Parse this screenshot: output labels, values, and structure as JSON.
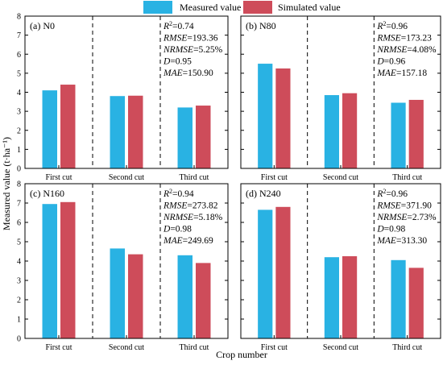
{
  "figure": {
    "ylabel": "Measured value (t·ha⁻¹)",
    "xlabel": "Crop number",
    "legend": [
      {
        "label": "Measured value",
        "color": "#29B2E3"
      },
      {
        "label": "Simulated value",
        "color": "#CE4C5A"
      }
    ]
  },
  "chart_data": [
    {
      "type": "bar",
      "panel_label": "(a) N0",
      "categories": [
        "First cut",
        "Second cut",
        "Third cut"
      ],
      "series": [
        {
          "name": "Measured value",
          "values": [
            4.1,
            3.8,
            3.2
          ]
        },
        {
          "name": "Simulated value",
          "values": [
            4.4,
            3.82,
            3.3
          ]
        }
      ],
      "ylim": [
        0,
        8
      ],
      "yticks": [
        0,
        1,
        2,
        3,
        4,
        5,
        6,
        7,
        8
      ],
      "stats": {
        "r2": "0.74",
        "rmse": "193.36",
        "nrmse": "5.25%",
        "d": "0.95",
        "mae": "150.90"
      }
    },
    {
      "type": "bar",
      "panel_label": "(b) N80",
      "categories": [
        "First cut",
        "Second cut",
        "Third cut"
      ],
      "series": [
        {
          "name": "Measured value",
          "values": [
            5.5,
            3.85,
            3.45
          ]
        },
        {
          "name": "Simulated value",
          "values": [
            5.25,
            3.95,
            3.6
          ]
        }
      ],
      "ylim": [
        0,
        8
      ],
      "yticks": [
        0,
        1,
        2,
        3,
        4,
        5,
        6,
        7,
        8
      ],
      "stats": {
        "r2": "0.96",
        "rmse": "173.23",
        "nrmse": "4.08%",
        "d": "0.96",
        "mae": "157.18"
      }
    },
    {
      "type": "bar",
      "panel_label": "(c) N160",
      "categories": [
        "First cut",
        "Second cut",
        "Third cut"
      ],
      "series": [
        {
          "name": "Measured value",
          "values": [
            6.95,
            4.65,
            4.3
          ]
        },
        {
          "name": "Simulated value",
          "values": [
            7.05,
            4.35,
            3.9
          ]
        }
      ],
      "ylim": [
        0,
        8
      ],
      "yticks": [
        0,
        1,
        2,
        3,
        4,
        5,
        6,
        7,
        8
      ],
      "stats": {
        "r2": "0.94",
        "rmse": "273.82",
        "nrmse": "5.18%",
        "d": "0.98",
        "mae": "249.69"
      }
    },
    {
      "type": "bar",
      "panel_label": "(d) N240",
      "categories": [
        "First cut",
        "Second cut",
        "Third cut"
      ],
      "series": [
        {
          "name": "Measured value",
          "values": [
            6.65,
            4.2,
            4.05
          ]
        },
        {
          "name": "Simulated value",
          "values": [
            6.8,
            4.25,
            3.65
          ]
        }
      ],
      "ylim": [
        0,
        8
      ],
      "yticks": [
        0,
        1,
        2,
        3,
        4,
        5,
        6,
        7,
        8
      ],
      "stats": {
        "r2": "0.96",
        "rmse": "371.90",
        "nrmse": "2.73%",
        "d": "0.98",
        "mae": "313.30"
      }
    }
  ]
}
